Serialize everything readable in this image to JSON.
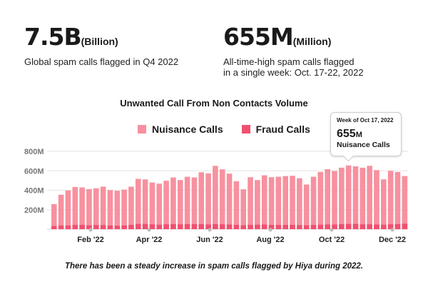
{
  "stats": [
    {
      "value": "7.5B",
      "unit": "(Billion)",
      "description": "Global spam calls flagged in Q4 2022"
    },
    {
      "value": "655M",
      "unit": "(Million)",
      "description_line1": "All-time-high spam calls flagged",
      "description_line2": "in a single week: Oct. 17-22, 2022"
    }
  ],
  "chart_data": {
    "type": "bar",
    "stacked": true,
    "title": "Unwanted Call From Non Contacts Volume",
    "ylim": [
      0,
      800
    ],
    "yticks": [
      "200M",
      "400M",
      "600M",
      "800M"
    ],
    "ytick_values": [
      200,
      400,
      600,
      800
    ],
    "xtick_labels": [
      "Feb '22",
      "Apr '22",
      "Jun '22",
      "Aug '22",
      "Oct '22",
      "Dec '22"
    ],
    "grid": true,
    "legend_position": "top",
    "colors": {
      "nuisance": "#f7919f",
      "fraud": "#f0506f"
    },
    "series": [
      {
        "name": "Nuisance Calls",
        "values": [
          258,
          354,
          398,
          434,
          429,
          412,
          420,
          437,
          402,
          395,
          407,
          437,
          517,
          512,
          480,
          468,
          498,
          532,
          505,
          539,
          532,
          585,
          573,
          651,
          615,
          571,
          493,
          410,
          534,
          505,
          554,
          534,
          539,
          546,
          549,
          524,
          459,
          539,
          588,
          617,
          598,
          632,
          655,
          646,
          632,
          651,
          607,
          512,
          600,
          588,
          546
        ]
      },
      {
        "name": "Fraud Calls",
        "values": [
          32,
          38,
          38,
          44,
          44,
          40,
          42,
          42,
          38,
          36,
          38,
          44,
          54,
          54,
          50,
          46,
          50,
          52,
          50,
          52,
          52,
          52,
          48,
          52,
          50,
          48,
          44,
          40,
          44,
          46,
          48,
          44,
          44,
          44,
          44,
          42,
          40,
          44,
          46,
          48,
          48,
          52,
          54,
          54,
          50,
          50,
          48,
          46,
          50,
          52,
          56
        ]
      }
    ],
    "tooltip": {
      "week": "Week of Oct 17, 2022",
      "value": "655",
      "unit": "M",
      "label": "Nuisance Calls"
    }
  },
  "caption": "There has been a steady increase in spam calls flagged by Hiya during 2022."
}
